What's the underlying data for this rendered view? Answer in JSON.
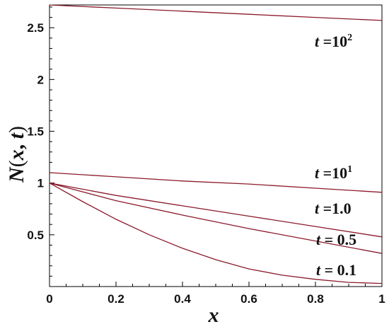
{
  "chart_data": {
    "type": "line",
    "title": "",
    "xlabel": "x",
    "ylabel_parts": {
      "fn": "N",
      "open": "(",
      "a": "x",
      "sep": ", ",
      "b": "t",
      "close": ")"
    },
    "xlim": [
      0,
      1
    ],
    "ylim": [
      0,
      2.72
    ],
    "x_ticks": [
      0,
      0.2,
      0.4,
      0.6,
      0.8,
      1
    ],
    "x_tick_labels": [
      "0",
      "0.2",
      "0.4",
      "0.6",
      "0.8",
      "1"
    ],
    "y_ticks": [
      0.5,
      1,
      1.5,
      2,
      2.5
    ],
    "y_tick_labels": [
      "0.5",
      "1",
      "1.5",
      "2",
      "2.5"
    ],
    "grid": false,
    "line_color": "#8b1a2b",
    "series": [
      {
        "label_var": "t",
        "label_eq": " =10",
        "label_sup": "2",
        "x": [
          0,
          0.2,
          0.4,
          0.6,
          0.8,
          1
        ],
        "y": [
          2.72,
          2.69,
          2.66,
          2.63,
          2.6,
          2.57
        ]
      },
      {
        "label_var": "t",
        "label_eq": " =10",
        "label_sup": "1",
        "x": [
          0,
          0.2,
          0.4,
          0.6,
          0.8,
          1
        ],
        "y": [
          1.1,
          1.06,
          1.02,
          0.99,
          0.95,
          0.91
        ]
      },
      {
        "label_var": "t",
        "label_eq": " =1.0",
        "label_sup": "",
        "x": [
          0,
          0.2,
          0.4,
          0.6,
          0.8,
          1
        ],
        "y": [
          1.0,
          0.88,
          0.78,
          0.68,
          0.58,
          0.48
        ]
      },
      {
        "label_var": "t",
        "label_eq": " = 0.5",
        "label_sup": "",
        "x": [
          0,
          0.2,
          0.4,
          0.6,
          0.8,
          1
        ],
        "y": [
          1.0,
          0.83,
          0.69,
          0.56,
          0.44,
          0.32
        ]
      },
      {
        "label_var": "t",
        "label_eq": " = 0.1",
        "label_sup": "",
        "x": [
          0,
          0.1,
          0.2,
          0.3,
          0.4,
          0.5,
          0.6,
          0.7,
          0.8,
          0.9,
          1
        ],
        "y": [
          1.0,
          0.82,
          0.65,
          0.5,
          0.37,
          0.26,
          0.17,
          0.11,
          0.07,
          0.04,
          0.03
        ]
      }
    ]
  }
}
